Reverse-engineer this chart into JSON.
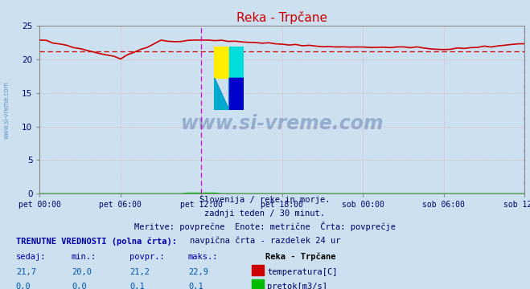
{
  "title": "Reka - Trpčane",
  "bg_color": "#cce0f0",
  "plot_bg_color": "#cce0f0",
  "grid_color_major": "#e8a0a0",
  "grid_color_minor": "#f0c8c8",
  "x_labels": [
    "pet 00:00",
    "pet 06:00",
    "pet 12:00",
    "pet 18:00",
    "sob 00:00",
    "sob 06:00",
    "sob 12:00"
  ],
  "x_ticks_pos": [
    0,
    12,
    24,
    36,
    48,
    60,
    72
  ],
  "ylim": [
    0,
    25
  ],
  "yticks": [
    0,
    5,
    10,
    15,
    20,
    25
  ],
  "temp_avg": 21.2,
  "temp_color": "#cc0000",
  "flow_color": "#00bb00",
  "vline_color": "#dd00dd",
  "vline_positions": [
    24,
    72
  ],
  "subtitle1": "Slovenija / reke in morje.",
  "subtitle2": "zadnji teden / 30 minut.",
  "subtitle3": "Meritve: povprečne  Enote: metrične  Črta: povprečje",
  "subtitle4": "navpična črta - razdelek 24 ur",
  "legend_title": "Reka - Trpčane",
  "label_temp": "temperatura[C]",
  "label_flow": "pretok[m3/s]",
  "table_header": [
    "sedaj:",
    "min.:",
    "povpr.:",
    "maks.:"
  ],
  "table_temp": [
    "21,7",
    "20,0",
    "21,2",
    "22,9"
  ],
  "table_flow": [
    "0,0",
    "0,0",
    "0,1",
    "0,1"
  ],
  "table_label": "TRENUTNE VREDNOSTI (polna črta):",
  "watermark": "www.si-vreme.com",
  "left_label": "www.si-vreme.com",
  "title_color": "#cc0000",
  "label_color": "#0000aa",
  "text_color": "#0000aa",
  "value_color": "#0055aa"
}
